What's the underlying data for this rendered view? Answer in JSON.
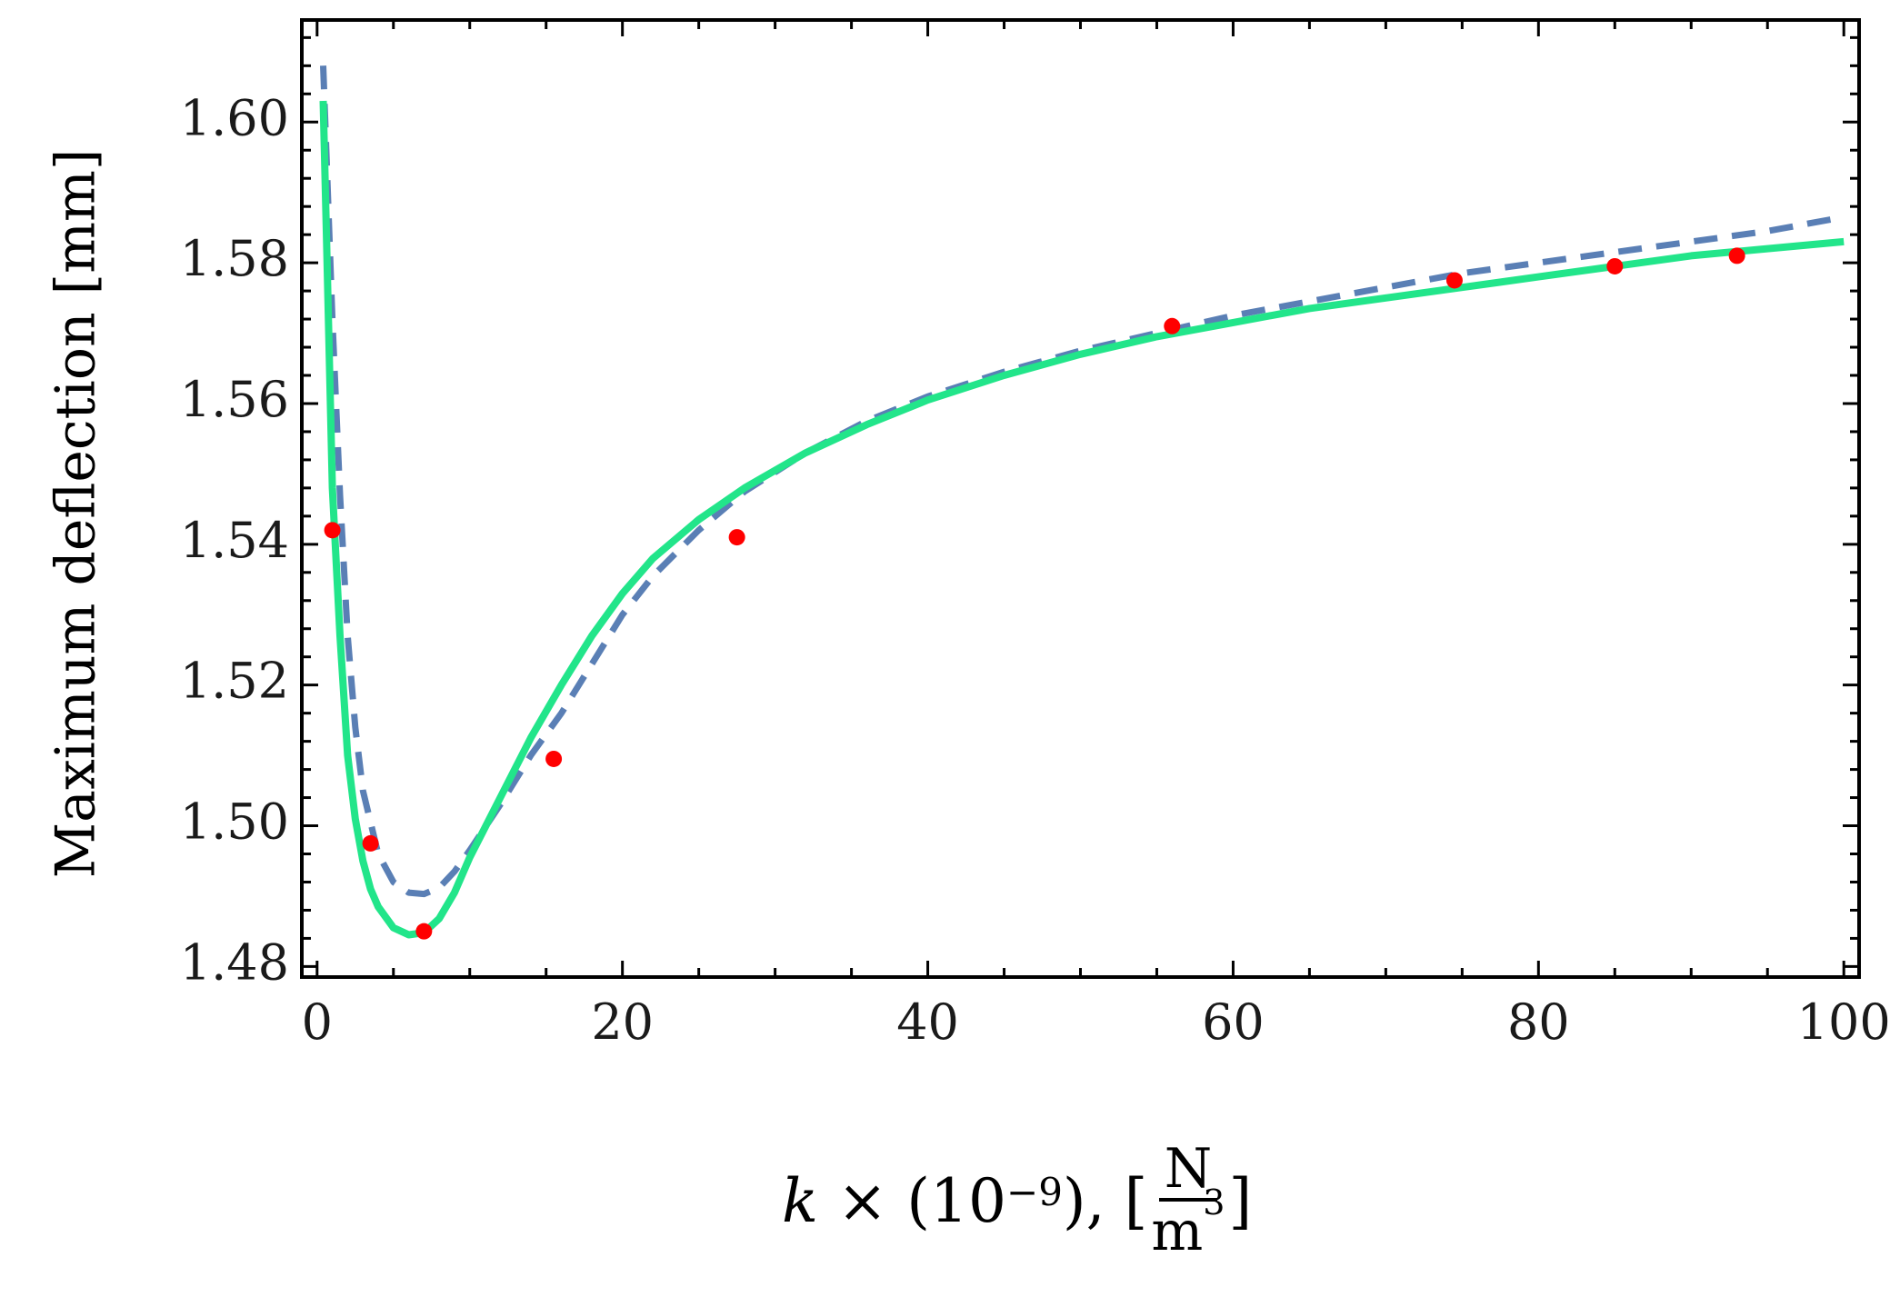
{
  "chart_data": {
    "type": "line",
    "ylabel": "Maximum deflection [mm]",
    "xlabel": {
      "variable": "k",
      "multiplier": " × (10",
      "exponent": "−9",
      "suffix": "), [",
      "unit_numerator": "N",
      "unit_denominator": "m",
      "unit_exponent": "3",
      "close": "]"
    },
    "xlim": [
      -1,
      101
    ],
    "ylim": [
      1.4785,
      1.6145
    ],
    "x_ticks": [
      0,
      20,
      40,
      60,
      80,
      100
    ],
    "x_tick_labels": [
      "0",
      "20",
      "40",
      "60",
      "80",
      "100"
    ],
    "y_ticks": [
      1.48,
      1.5,
      1.52,
      1.54,
      1.56,
      1.58,
      1.6
    ],
    "y_tick_labels": [
      "1.48",
      "1.50",
      "1.52",
      "1.54",
      "1.56",
      "1.58",
      "1.60"
    ],
    "grid": false,
    "series": [
      {
        "style": "dashed",
        "color": "#5a7fb5",
        "x": [
          0.4,
          0.6,
          1.0,
          1.5,
          2.0,
          2.5,
          3.0,
          4.0,
          5.0,
          6.0,
          7.0,
          8.0,
          9.0,
          10.0,
          12.0,
          14.0,
          16.0,
          18.0,
          20.0,
          22.0,
          25.0,
          28.0,
          32.0,
          36.0,
          40.0,
          45.0,
          50.0,
          55.0,
          60.0,
          65.0,
          70.0,
          75.0,
          80.0,
          85.0,
          90.0,
          95.0,
          100.0
        ],
        "y": [
          1.608,
          1.596,
          1.572,
          1.547,
          1.527,
          1.514,
          1.505,
          1.496,
          1.492,
          1.4905,
          1.4903,
          1.4912,
          1.4935,
          1.4965,
          1.503,
          1.51,
          1.516,
          1.523,
          1.53,
          1.5355,
          1.542,
          1.5475,
          1.553,
          1.5575,
          1.561,
          1.5645,
          1.5675,
          1.57,
          1.5725,
          1.5745,
          1.5765,
          1.5785,
          1.58,
          1.5815,
          1.583,
          1.5845,
          1.5865
        ]
      },
      {
        "style": "solid",
        "color": "#22e58a",
        "x": [
          0.4,
          0.6,
          1.0,
          1.5,
          2.0,
          2.5,
          3.0,
          3.5,
          4.0,
          5.0,
          6.0,
          7.0,
          8.0,
          9.0,
          10.0,
          12.0,
          14.0,
          16.0,
          18.0,
          20.0,
          22.0,
          25.0,
          28.0,
          32.0,
          36.0,
          40.0,
          45.0,
          50.0,
          55.0,
          60.0,
          65.0,
          70.0,
          75.0,
          80.0,
          85.0,
          90.0,
          95.0,
          100.0
        ],
        "y": [
          1.603,
          1.585,
          1.548,
          1.527,
          1.51,
          1.501,
          1.495,
          1.491,
          1.4885,
          1.4855,
          1.4845,
          1.4848,
          1.4868,
          1.4905,
          1.4955,
          1.504,
          1.5125,
          1.52,
          1.527,
          1.533,
          1.538,
          1.5435,
          1.548,
          1.553,
          1.557,
          1.5605,
          1.564,
          1.567,
          1.5695,
          1.5715,
          1.5735,
          1.575,
          1.5765,
          1.578,
          1.5795,
          1.581,
          1.582,
          1.583
        ]
      },
      {
        "style": "markers",
        "color": "#ff0000",
        "x": [
          1.0,
          3.5,
          7.0,
          15.5,
          27.5,
          56.0,
          74.5,
          85.0,
          93.0
        ],
        "y": [
          1.542,
          1.4975,
          1.485,
          1.5095,
          1.541,
          1.571,
          1.5775,
          1.5795,
          1.581
        ]
      }
    ]
  }
}
